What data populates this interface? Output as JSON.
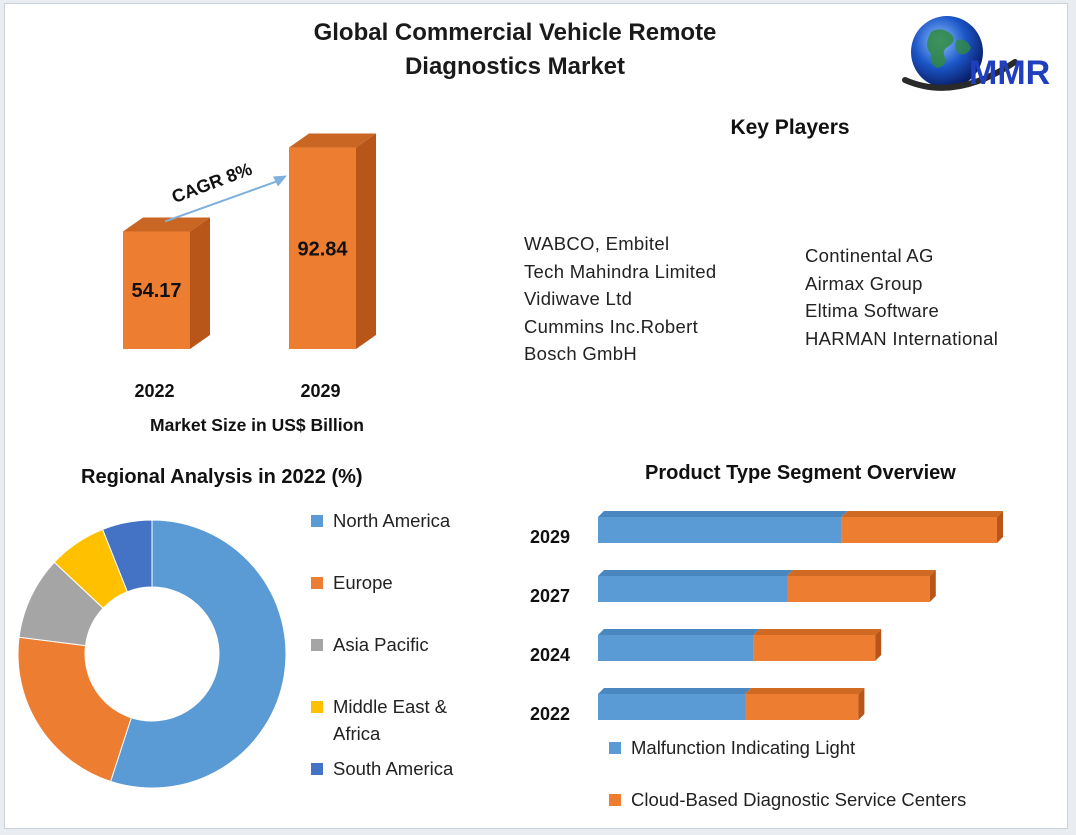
{
  "title_line1": "Global Commercial Vehicle Remote",
  "title_line2": "Diagnostics Market",
  "logo_text": "MMR",
  "key_players": {
    "heading": "Key Players",
    "column1": [
      "WABCO, Embitel",
      "Tech Mahindra Limited",
      "Vidiwave Ltd",
      "Cummins Inc.Robert",
      "Bosch GmbH"
    ],
    "column2": [
      "Continental AG",
      "Airmax Group",
      "Eltima Software",
      "HARMAN International"
    ]
  },
  "colors": {
    "orange": "#ed7d31",
    "orange_dark": "#b8561a",
    "blue": "#5b9bd5",
    "gray": "#a5a5a5",
    "yellow": "#ffc000",
    "dark_blue": "#4472c4",
    "arrow": "#7eb0dd"
  },
  "chart_data": [
    {
      "type": "bar",
      "categories": [
        "2022",
        "2029"
      ],
      "values": [
        54.17,
        92.84
      ],
      "xlabel": "Market Size in US$ Billion",
      "annotation": "CAGR 8%"
    },
    {
      "type": "pie",
      "title": "Regional Analysis in 2022 (%)",
      "labels": [
        "North America",
        "Europe",
        "Asia Pacific",
        "Middle East & Africa",
        "South America"
      ],
      "legend_lines": [
        [
          "North America"
        ],
        [
          "Europe"
        ],
        [
          "Asia Pacific"
        ],
        [
          "Middle East &",
          "Africa"
        ],
        [
          "South America"
        ]
      ],
      "values": [
        55,
        22,
        10,
        7,
        6
      ],
      "colors": [
        "#5b9bd5",
        "#ed7d31",
        "#a5a5a5",
        "#ffc000",
        "#4472c4"
      ],
      "legend_position": "right"
    },
    {
      "type": "bar",
      "orientation": "horizontal",
      "stacked": true,
      "title": "Product Type Segment Overview",
      "categories": [
        "2029",
        "2027",
        "2024",
        "2022"
      ],
      "series": [
        {
          "name": "Malfunction Indicating Light",
          "values": [
            58,
            45,
            37,
            35
          ],
          "color": "#5b9bd5"
        },
        {
          "name": "Cloud-Based Diagnostic Service Centers",
          "values": [
            37,
            34,
            29,
            27
          ],
          "color": "#ed7d31"
        }
      ],
      "legend_position": "bottom"
    }
  ]
}
